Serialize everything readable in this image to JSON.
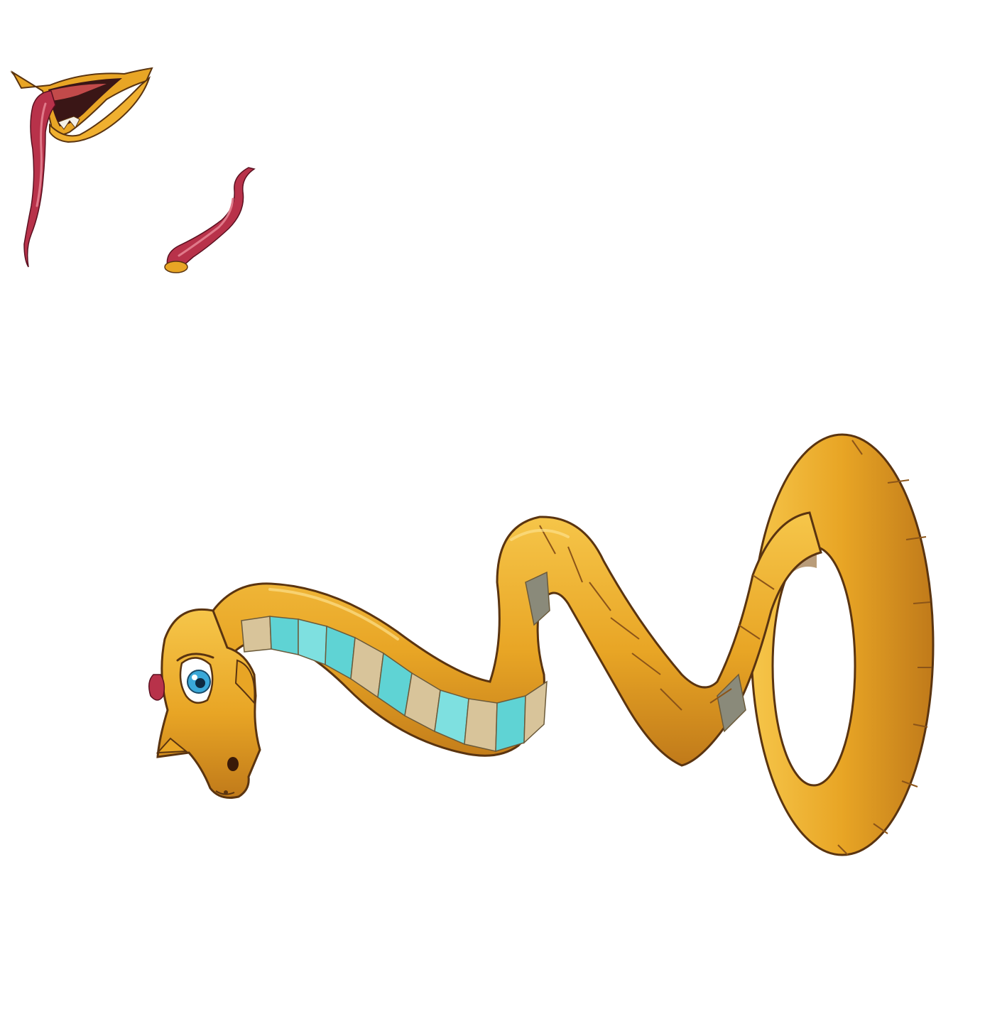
{
  "canvas": {
    "background": "#ffffff"
  },
  "sprites": [
    {
      "name": "snake-mouth-open",
      "icon": "open-mouth-with-tongue-icon"
    },
    {
      "name": "snake-tongue",
      "icon": "forked-tongue-icon"
    },
    {
      "name": "snake-body",
      "icon": "coiled-snake-icon"
    }
  ],
  "colors": {
    "body_gold": "#e8a525",
    "body_shadow": "#c07a1a",
    "body_highlight": "#f6c64a",
    "belly_cyan": "#5fd3d4",
    "belly_tan": "#d8c49a",
    "tongue_red": "#b8324a",
    "tongue_pink": "#e07a8a",
    "eye_blue": "#3aa8d8",
    "outline": "#5a3410"
  }
}
